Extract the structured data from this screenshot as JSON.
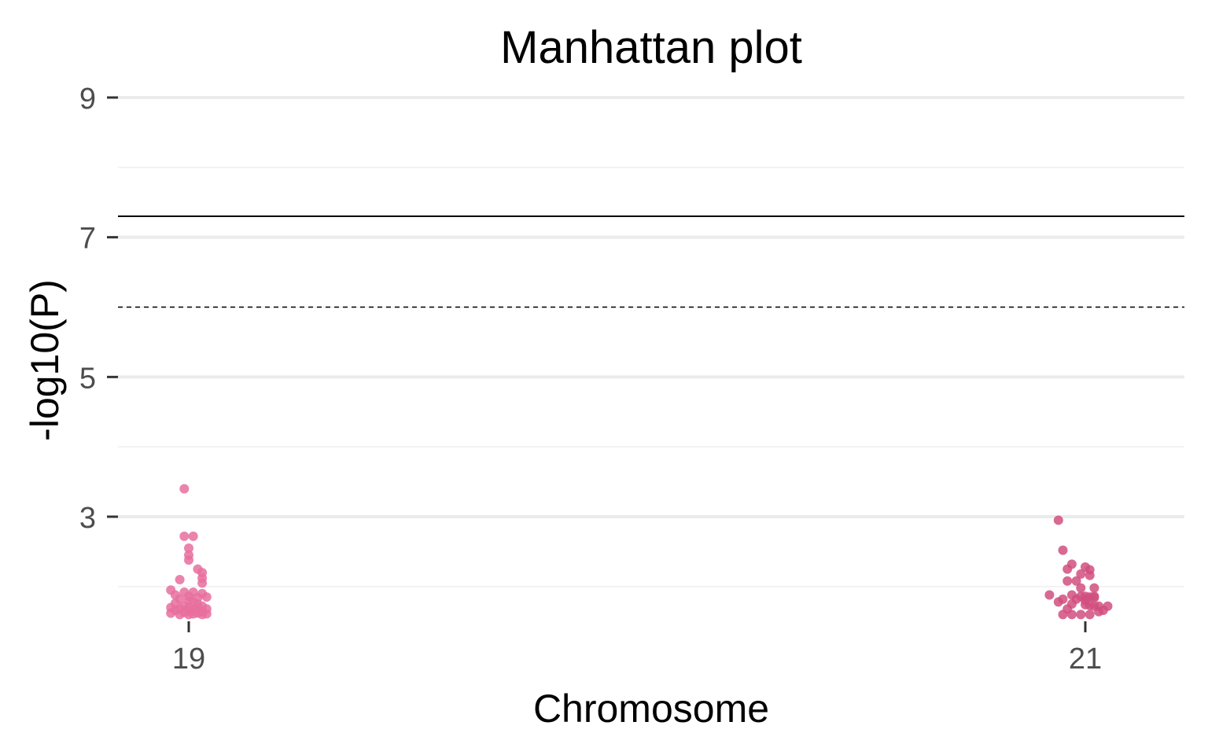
{
  "chart_data": {
    "type": "scatter",
    "title": "Manhattan plot",
    "xlabel": "Chromosome",
    "ylabel": "-log10(P)",
    "x_ticks": [
      "19",
      "21"
    ],
    "y_ticks": [
      3,
      5,
      7,
      9
    ],
    "ylim": [
      1.6,
      9.3
    ],
    "grid": "horizontal",
    "thresholds": {
      "genome_wide": 7.3,
      "suggestive": 6.0
    },
    "colors": {
      "chr19": "#e76f9d",
      "chr21": "#d14f7f",
      "major_grid": "#ebebeb",
      "minor_grid": "#f2f2f2",
      "threshold_line": "#000000"
    },
    "series": [
      {
        "chromosome": "19",
        "points": [
          [
            18.99,
            3.4
          ],
          [
            18.99,
            2.72
          ],
          [
            19.01,
            2.72
          ],
          [
            19.0,
            2.55
          ],
          [
            19.0,
            2.45
          ],
          [
            19.0,
            2.38
          ],
          [
            19.02,
            2.25
          ],
          [
            19.03,
            2.2
          ],
          [
            19.03,
            2.12
          ],
          [
            19.03,
            2.05
          ],
          [
            18.98,
            2.1
          ],
          [
            18.96,
            1.95
          ],
          [
            18.99,
            1.92
          ],
          [
            19.01,
            1.92
          ],
          [
            19.03,
            1.9
          ],
          [
            18.97,
            1.88
          ],
          [
            19.0,
            1.86
          ],
          [
            19.02,
            1.84
          ],
          [
            19.04,
            1.85
          ],
          [
            18.98,
            1.82
          ],
          [
            19.0,
            1.8
          ],
          [
            19.01,
            1.78
          ],
          [
            18.97,
            1.76
          ],
          [
            19.02,
            1.75
          ],
          [
            19.03,
            1.72
          ],
          [
            18.99,
            1.72
          ],
          [
            18.96,
            1.7
          ],
          [
            19.0,
            1.7
          ],
          [
            19.02,
            1.69
          ],
          [
            18.98,
            1.68
          ],
          [
            19.01,
            1.67
          ],
          [
            19.04,
            1.68
          ],
          [
            18.97,
            1.66
          ],
          [
            19.0,
            1.65
          ],
          [
            19.03,
            1.64
          ],
          [
            18.99,
            1.63
          ],
          [
            19.02,
            1.62
          ],
          [
            18.96,
            1.62
          ],
          [
            19.01,
            1.61
          ],
          [
            19.04,
            1.61
          ],
          [
            18.98,
            1.6
          ],
          [
            19.0,
            1.6
          ],
          [
            19.03,
            1.6
          ]
        ]
      },
      {
        "chromosome": "21",
        "points": [
          [
            20.94,
            2.95
          ],
          [
            20.95,
            2.52
          ],
          [
            20.97,
            2.32
          ],
          [
            21.0,
            2.28
          ],
          [
            20.96,
            2.25
          ],
          [
            21.01,
            2.24
          ],
          [
            20.99,
            2.18
          ],
          [
            21.01,
            2.16
          ],
          [
            20.96,
            2.08
          ],
          [
            20.98,
            2.08
          ],
          [
            20.99,
            1.98
          ],
          [
            21.02,
            1.98
          ],
          [
            20.92,
            1.88
          ],
          [
            20.97,
            1.88
          ],
          [
            20.99,
            1.86
          ],
          [
            21.0,
            1.86
          ],
          [
            21.01,
            1.85
          ],
          [
            21.02,
            1.86
          ],
          [
            20.95,
            1.82
          ],
          [
            20.98,
            1.82
          ],
          [
            21.0,
            1.8
          ],
          [
            21.02,
            1.84
          ],
          [
            20.94,
            1.78
          ],
          [
            20.97,
            1.75
          ],
          [
            21.0,
            1.74
          ],
          [
            21.01,
            1.73
          ],
          [
            21.02,
            1.72
          ],
          [
            21.03,
            1.72
          ],
          [
            21.05,
            1.72
          ],
          [
            20.96,
            1.68
          ],
          [
            21.04,
            1.66
          ],
          [
            21.03,
            1.64
          ],
          [
            20.99,
            1.6
          ],
          [
            21.01,
            1.6
          ],
          [
            20.95,
            1.6
          ],
          [
            20.97,
            1.6
          ]
        ]
      }
    ]
  }
}
